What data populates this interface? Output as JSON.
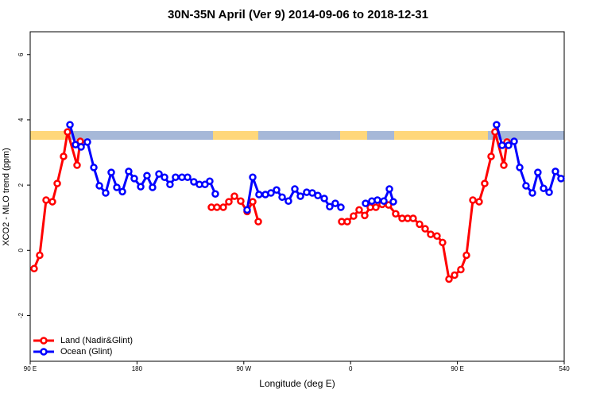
{
  "chart_data": {
    "type": "line",
    "title": "30N-35N April (Ver 9)   2014-09-06 to 2018-12-31",
    "x_label": "Longitude (deg E)",
    "y_label": "XCO2 - MLO trend (ppm)",
    "xlim": [
      90,
      540
    ],
    "ylim": [
      -3.4,
      6.7
    ],
    "xticks": [
      {
        "value": 90,
        "label": "90 E"
      },
      180,
      {
        "value": 270,
        "label": "90 W"
      },
      {
        "value": 360,
        "label": "0"
      },
      {
        "value": 450,
        "label": "90 E"
      },
      540
    ],
    "yticks": [
      -2,
      0,
      2,
      4,
      6
    ],
    "legend": "bottomleft",
    "series": [
      {
        "name": "Land (Nadir&Glint)",
        "color": "#ff0000",
        "x": [
          93.3,
          98.0,
          103.4,
          108.7,
          112.8,
          118.1,
          121.5,
          129.5,
          132.2,
          null,
          242.7,
          247.4,
          252.7,
          257.4,
          262.1,
          267.4,
          272.8,
          277.5,
          282.2,
          null,
          352.5,
          357.2,
          362.5,
          367.2,
          371.9,
          376.6,
          381.3,
          386.6,
          392.0,
          398.0,
          403.4,
          408.1,
          412.7,
          418.1,
          422.8,
          427.5,
          432.8,
          437.5,
          442.9,
          447.6,
          452.9,
          457.6,
          463.0,
          468.3,
          473.0,
          478.4,
          481.7,
          489.1,
          491.8
        ],
        "values": [
          -0.56,
          -0.15,
          1.54,
          1.49,
          2.05,
          2.88,
          3.63,
          2.61,
          3.34,
          null,
          1.32,
          1.32,
          1.32,
          1.49,
          1.66,
          1.51,
          1.19,
          1.49,
          0.88,
          null,
          0.88,
          0.88,
          1.05,
          1.24,
          1.07,
          1.32,
          1.32,
          1.41,
          1.39,
          1.12,
          0.98,
          0.98,
          0.98,
          0.8,
          0.66,
          0.49,
          0.44,
          0.24,
          -0.88,
          -0.76,
          -0.59,
          -0.15,
          1.54,
          1.49,
          2.05,
          2.88,
          3.63,
          2.61,
          3.32
        ]
      },
      {
        "name": "Ocean (Glint)",
        "color": "#0000ff",
        "x": [
          123.5,
          128.2,
          132.9,
          138.2,
          143.6,
          148.3,
          153.6,
          158.3,
          163.0,
          167.7,
          173.0,
          177.7,
          183.1,
          188.4,
          193.1,
          198.5,
          203.2,
          207.8,
          212.5,
          217.9,
          222.6,
          227.9,
          232.6,
          237.3,
          241.3,
          246.0,
          null,
          272.8,
          277.5,
          282.8,
          288.2,
          292.9,
          297.6,
          302.3,
          307.6,
          313.0,
          317.7,
          323.0,
          327.7,
          332.4,
          337.8,
          342.4,
          347.1,
          351.8,
          null,
          372.6,
          377.9,
          382.6,
          388.0,
          392.7,
          396.0,
          null,
          483.0,
          487.7,
          493.1,
          497.8,
          502.5,
          507.8,
          513.2,
          517.8,
          522.6,
          527.3,
          532.6,
          537.3
        ],
        "values": [
          3.85,
          3.24,
          3.17,
          3.32,
          2.54,
          1.98,
          1.76,
          2.39,
          1.93,
          1.8,
          2.42,
          2.2,
          1.95,
          2.29,
          1.93,
          2.34,
          2.24,
          2.02,
          2.24,
          2.24,
          2.24,
          2.1,
          2.02,
          2.02,
          2.12,
          1.73,
          null,
          1.24,
          2.24,
          1.71,
          1.71,
          1.76,
          1.85,
          1.63,
          1.51,
          1.88,
          1.66,
          1.78,
          1.76,
          1.68,
          1.59,
          1.34,
          1.44,
          1.32,
          null,
          1.44,
          1.51,
          1.54,
          1.51,
          1.88,
          1.49,
          null,
          3.85,
          3.22,
          3.22,
          3.34,
          2.54,
          1.98,
          1.76,
          2.39,
          1.9,
          1.78,
          2.42,
          2.2
        ]
      }
    ]
  }
}
